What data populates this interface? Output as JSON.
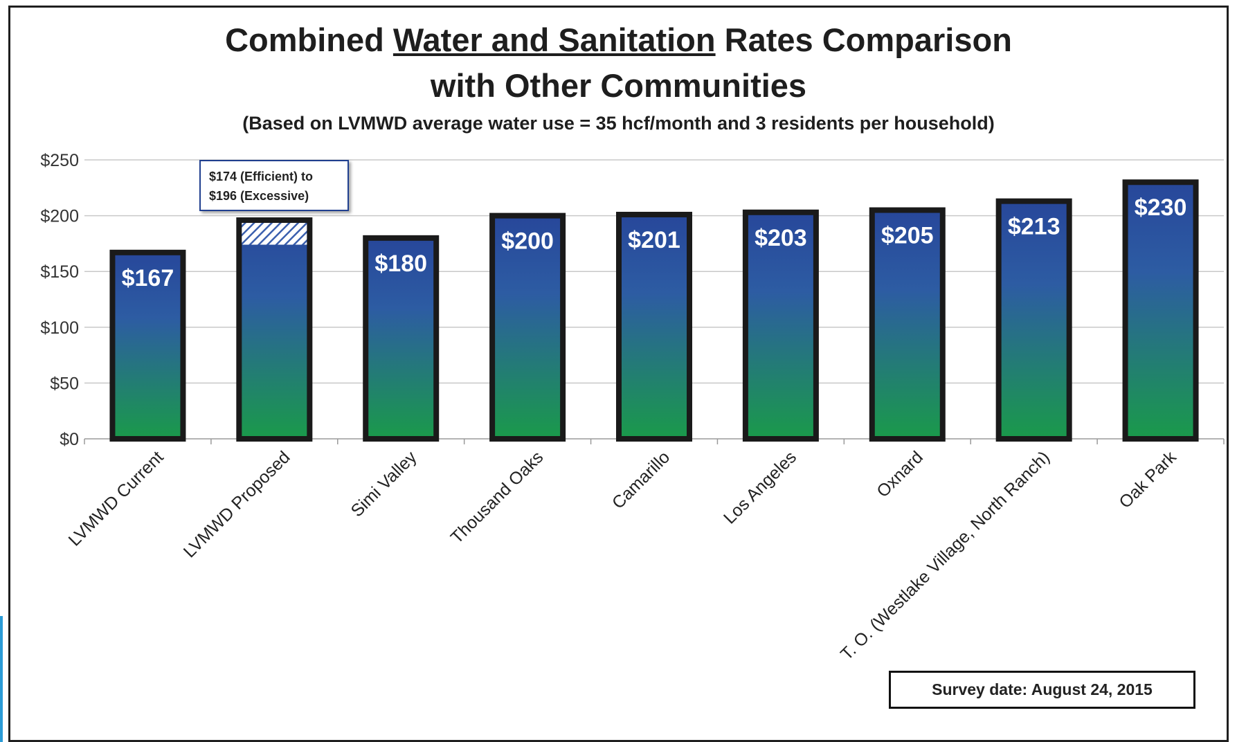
{
  "title_parts": {
    "pre": "Combined ",
    "underlined": "Water and Sanitation",
    "post": " Rates Comparison",
    "line2": "with Other Communities"
  },
  "subtitle": "(Based on LVMWD average water use = 35 hcf/month and 3 residents per household)",
  "annotation": {
    "line1": "$174 (Efficient) to",
    "line2": "$196 (Excessive)"
  },
  "survey_note": "Survey date: August 24, 2015",
  "colors": {
    "bar_top": "#27479a",
    "bar_bottom": "#1a9a4a",
    "bar_border": "#1a1a1a",
    "grid": "#c8c8c8",
    "value_label": "#ffffff"
  },
  "chart_data": {
    "type": "bar",
    "title": "Combined Water and Sanitation Rates Comparison with Other Communities",
    "categories": [
      "LVMWD Current",
      "LVMWD Proposed",
      "Simi Valley",
      "Thousand Oaks",
      "Camarillo",
      "Los Angeles",
      "Oxnard",
      "T. O. (Westlake Village, North Ranch)",
      "Oak Park"
    ],
    "values": [
      167,
      196,
      180,
      200,
      201,
      203,
      205,
      213,
      230
    ],
    "value_labels": [
      "$167",
      "",
      "$180",
      "$200",
      "$201",
      "$203",
      "$205",
      "$213",
      "$230"
    ],
    "range_band": {
      "category": "LVMWD Proposed",
      "low": 174,
      "high": 196
    },
    "ylim": [
      0,
      250
    ],
    "yticks": [
      0,
      50,
      100,
      150,
      200,
      250
    ],
    "ytick_labels": [
      "$0",
      "$50",
      "$100",
      "$150",
      "$200",
      "$250"
    ],
    "grid": true,
    "legend": "none"
  }
}
